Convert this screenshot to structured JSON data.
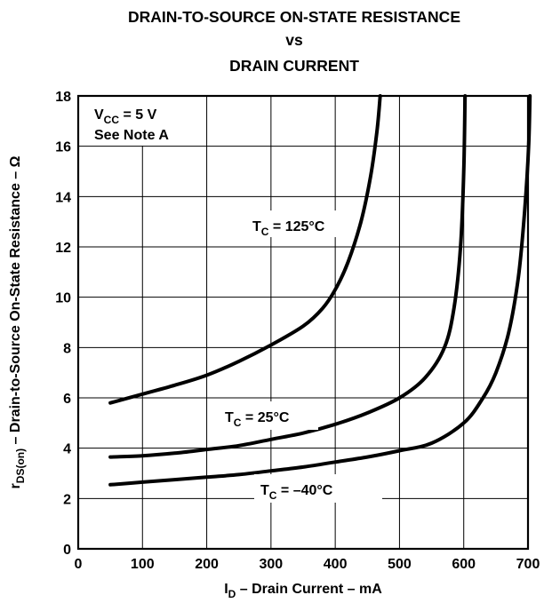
{
  "chart_data": {
    "type": "line",
    "title_lines": [
      "DRAIN-TO-SOURCE ON-STATE RESISTANCE",
      "vs",
      "DRAIN CURRENT"
    ],
    "xlabel": {
      "main": "I",
      "sub": "D",
      "rest": " – Drain Current – mA"
    },
    "ylabel": {
      "main": "r",
      "sub": "DS(on)",
      "rest": " – Drain-to-Source On-State Resistance – Ω"
    },
    "xlim": [
      0,
      700
    ],
    "ylim": [
      0,
      18
    ],
    "x_ticks": [
      0,
      100,
      200,
      300,
      400,
      500,
      600,
      700
    ],
    "y_ticks": [
      0,
      2,
      4,
      6,
      8,
      10,
      12,
      14,
      16,
      18
    ],
    "grid": true,
    "conditions": [
      {
        "main": "V",
        "sub": "CC",
        "rest": " = 5 V"
      },
      {
        "main": "See Note A",
        "sub": "",
        "rest": ""
      }
    ],
    "series": [
      {
        "name": {
          "main": "T",
          "sub": "C",
          "rest": " = 125°C"
        },
        "points": [
          [
            50,
            5.8
          ],
          [
            100,
            6.15
          ],
          [
            150,
            6.5
          ],
          [
            200,
            6.9
          ],
          [
            250,
            7.45
          ],
          [
            300,
            8.1
          ],
          [
            350,
            8.85
          ],
          [
            380,
            9.55
          ],
          [
            400,
            10.3
          ],
          [
            420,
            11.4
          ],
          [
            440,
            13.0
          ],
          [
            455,
            14.8
          ],
          [
            465,
            16.6
          ],
          [
            470,
            18.0
          ]
        ]
      },
      {
        "name": {
          "main": "T",
          "sub": "C",
          "rest": " = 25°C"
        },
        "points": [
          [
            50,
            3.65
          ],
          [
            100,
            3.7
          ],
          [
            150,
            3.8
          ],
          [
            200,
            3.95
          ],
          [
            250,
            4.1
          ],
          [
            300,
            4.35
          ],
          [
            350,
            4.6
          ],
          [
            400,
            4.95
          ],
          [
            450,
            5.4
          ],
          [
            500,
            6.0
          ],
          [
            540,
            6.8
          ],
          [
            570,
            8.0
          ],
          [
            585,
            9.6
          ],
          [
            595,
            12.0
          ],
          [
            600,
            15.0
          ],
          [
            602,
            18.0
          ]
        ]
      },
      {
        "name": {
          "main": "T",
          "sub": "C",
          "rest": " = –40°C"
        },
        "points": [
          [
            50,
            2.55
          ],
          [
            100,
            2.65
          ],
          [
            150,
            2.75
          ],
          [
            200,
            2.85
          ],
          [
            250,
            2.95
          ],
          [
            300,
            3.1
          ],
          [
            350,
            3.25
          ],
          [
            400,
            3.45
          ],
          [
            450,
            3.65
          ],
          [
            500,
            3.9
          ],
          [
            550,
            4.2
          ],
          [
            600,
            5.0
          ],
          [
            630,
            6.0
          ],
          [
            650,
            7.0
          ],
          [
            670,
            8.6
          ],
          [
            685,
            10.8
          ],
          [
            695,
            13.5
          ],
          [
            701,
            16.0
          ],
          [
            703,
            18.0
          ]
        ]
      }
    ]
  }
}
